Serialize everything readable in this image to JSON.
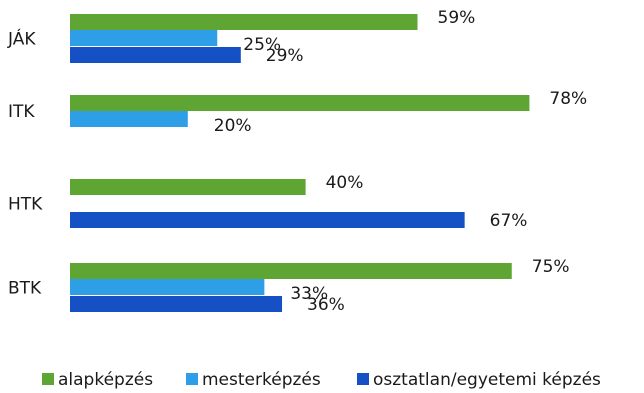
{
  "chart_data": {
    "type": "bar",
    "orientation": "horizontal",
    "categories": [
      "JÁK",
      "ITK",
      "HTK",
      "BTK"
    ],
    "series": [
      {
        "name": "alapképzés",
        "color": "#5fa533",
        "values": [
          59,
          78,
          40,
          75
        ],
        "labels": [
          "59%",
          "78%",
          "40%",
          "75%"
        ]
      },
      {
        "name": "mesterképzés",
        "color": "#2e9ee6",
        "values": [
          25,
          20,
          null,
          33
        ],
        "labels": [
          "25%",
          "20%",
          "",
          "33%"
        ]
      },
      {
        "name": "osztatlan/egyetemi képzés",
        "color": "#1550c4",
        "values": [
          29,
          null,
          67,
          36
        ],
        "labels": [
          "29%",
          "",
          "67%",
          "36%"
        ]
      }
    ],
    "xlim": [
      0,
      100
    ],
    "grid": false,
    "legend_position": "bottom"
  }
}
